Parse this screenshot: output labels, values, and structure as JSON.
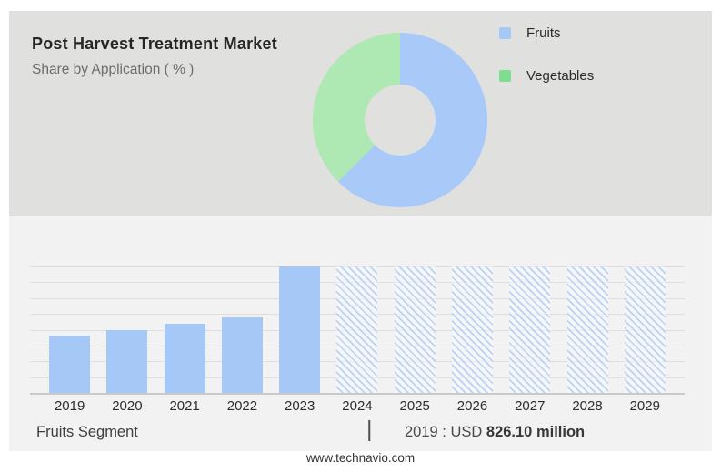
{
  "theme": {
    "panel_top_bg": "#e0e0df",
    "panel_bottom_bg": "#f2f2f3",
    "page_bg": "#ffffff",
    "accent_blue": "#a6c8f7",
    "accent_green": "#7edd8e"
  },
  "header": {
    "title": "Post Harvest Treatment Market",
    "subtitle": "Share by Application ( % )"
  },
  "legend": {
    "items": [
      {
        "label": "Fruits",
        "color": "#a6c8f7"
      },
      {
        "label": "Vegetables",
        "color": "#7edd8e"
      }
    ]
  },
  "chart_data": [
    {
      "type": "pie",
      "subtype": "donut",
      "title": "Share by Application ( % )",
      "labels": [
        "Fruits",
        "Vegetables"
      ],
      "values": [
        62.5,
        37.5
      ],
      "values_note": "percent labels not printed on chart; estimated from arc angles",
      "colors": [
        "#a9c9f8",
        "#aee8b2"
      ],
      "start_angle_deg": 0,
      "legend_position": "top-right"
    },
    {
      "type": "bar",
      "categories": [
        "2019",
        "2020",
        "2021",
        "2022",
        "2023",
        "2024",
        "2025",
        "2026",
        "2027",
        "2028",
        "2029"
      ],
      "values": [
        45,
        50,
        55,
        60,
        100,
        100,
        100,
        100,
        100,
        100,
        100
      ],
      "values_note": "no y-axis labels printed; values are relative bar heights in % of plot height",
      "bar_styles": [
        "solid",
        "solid",
        "solid",
        "solid",
        "solid",
        "hatched",
        "hatched",
        "hatched",
        "hatched",
        "hatched",
        "hatched"
      ],
      "bar_color": "#a6c8f7",
      "hatch_line_color": "#bdd2f0",
      "known_value": {
        "year": "2019",
        "value": "USD 826.10 million"
      },
      "title": "",
      "xlabel": "",
      "ylabel": "",
      "grid": true,
      "gridline_count": 9,
      "legend_position": "none"
    }
  ],
  "footer": {
    "segment_label": "Fruits Segment",
    "separator": "|",
    "value_prefix": "2019 : USD",
    "value_bold": "826.10 million",
    "website": "www.technavio.com"
  }
}
